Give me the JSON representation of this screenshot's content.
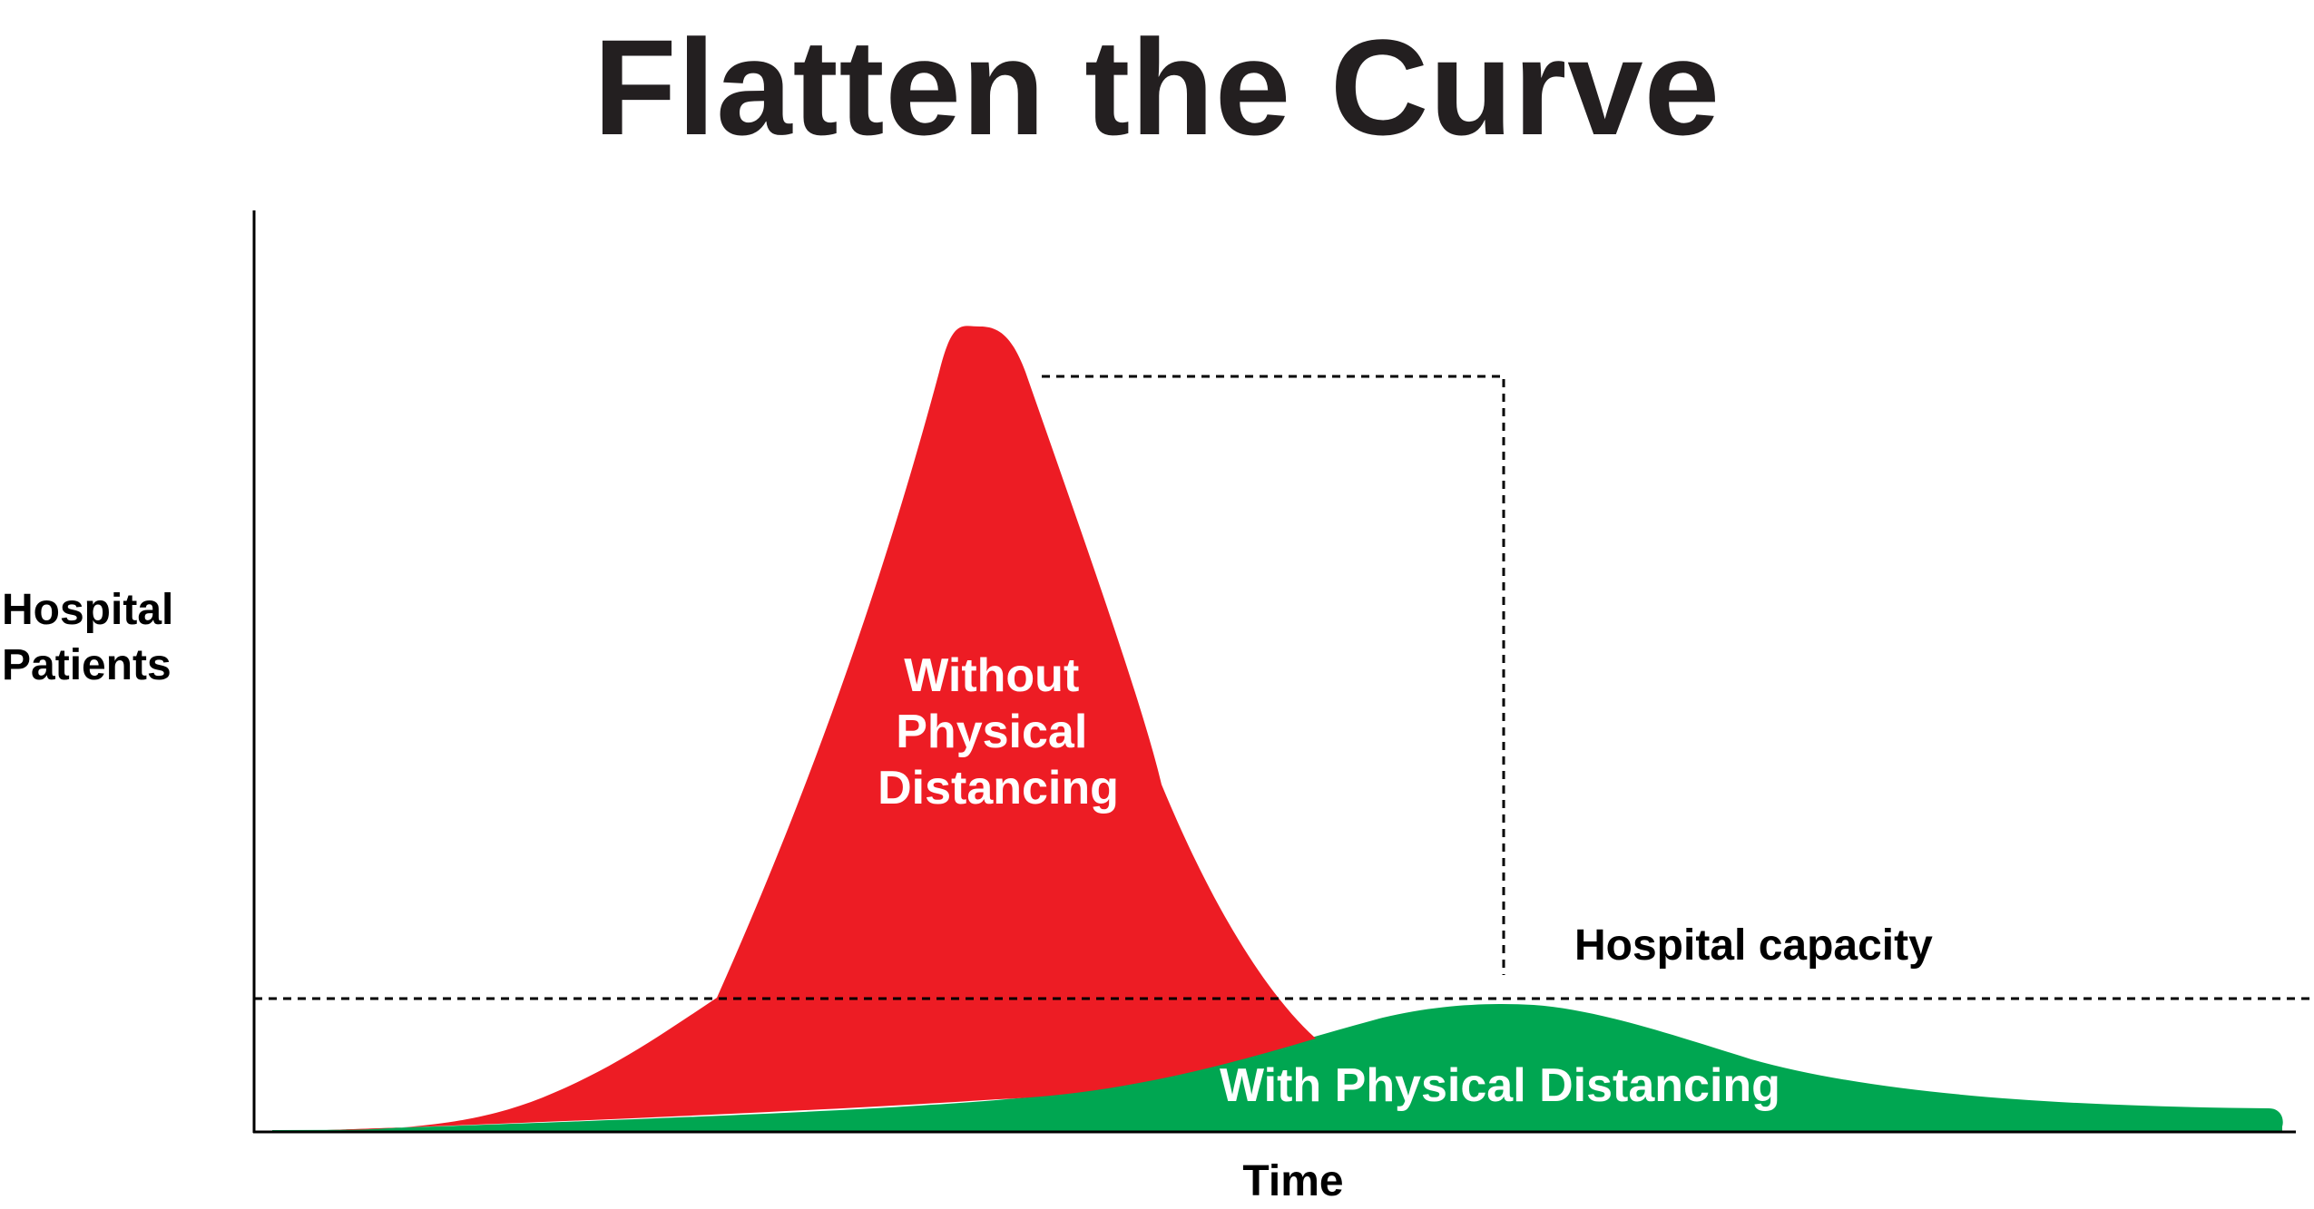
{
  "chart_data": {
    "type": "area",
    "title": "Flatten the Curve",
    "xlabel": "Time",
    "ylabel": [
      "Hospital",
      "Patients"
    ],
    "grid": false,
    "legend": "none",
    "series": [
      {
        "label_lines": [
          "Without",
          "Physical",
          "Distancing"
        ],
        "color": "#ed1c24",
        "peak_x": 0.35,
        "peak_y": 1.0
      },
      {
        "label_lines": [
          "With Physical Distancing"
        ],
        "color": "#00a651",
        "peak_x": 0.61,
        "peak_y": 0.16
      }
    ],
    "annotations": [
      {
        "text": "Hospital capacity",
        "y": 0.17
      }
    ]
  }
}
